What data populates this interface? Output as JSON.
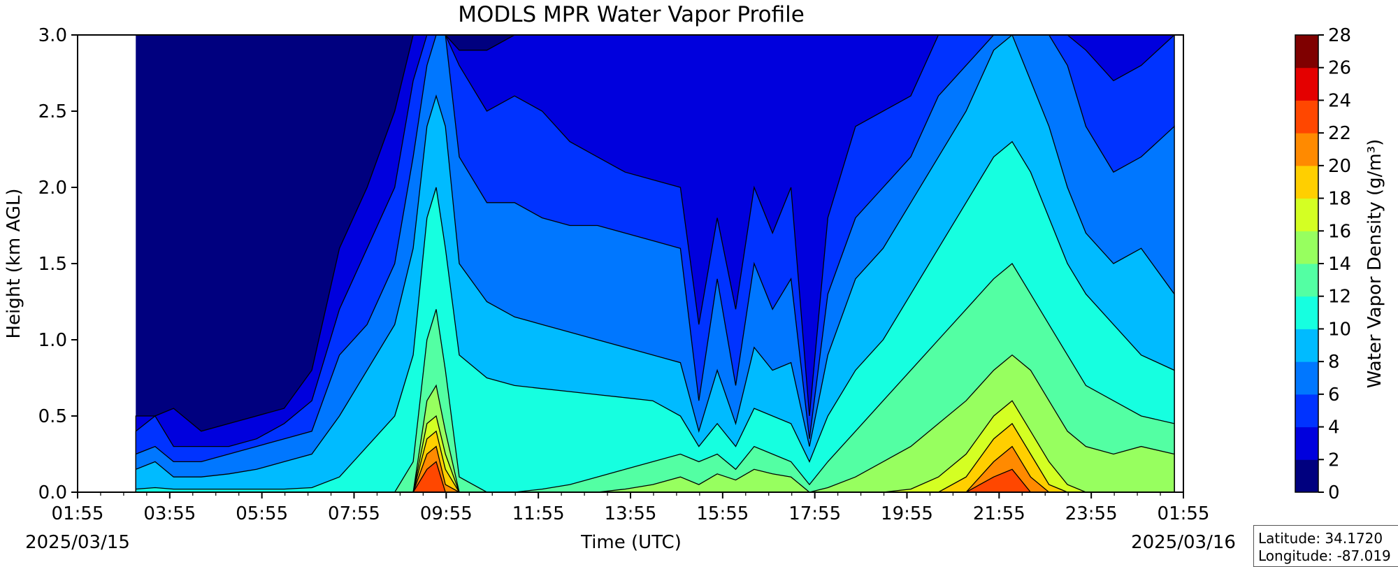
{
  "chart_data": {
    "type": "heatmap",
    "subtype": "filled-contour",
    "title": "MODLS MPR Water Vapor Profile",
    "xlabel": "Time (UTC)",
    "ylabel": "Height (km AGL)",
    "x_ticks": [
      "01:55",
      "03:55",
      "05:55",
      "07:55",
      "09:55",
      "11:55",
      "13:55",
      "15:55",
      "17:55",
      "19:55",
      "21:55",
      "23:55",
      "01:55"
    ],
    "x_tick_hours": [
      1.917,
      3.917,
      5.917,
      7.917,
      9.917,
      11.917,
      13.917,
      15.917,
      17.917,
      19.917,
      21.917,
      23.917,
      25.917
    ],
    "xlim_hours": [
      1.917,
      25.917
    ],
    "data_x_range_hours": [
      3.18,
      25.72
    ],
    "date_start": "2025/03/15",
    "date_end": "2025/03/16",
    "ylim": [
      0.0,
      3.0
    ],
    "y_ticks": [
      "0.0",
      "0.5",
      "1.0",
      "1.5",
      "2.0",
      "2.5",
      "3.0"
    ],
    "y_tick_values": [
      0.0,
      0.5,
      1.0,
      1.5,
      2.0,
      2.5,
      3.0
    ],
    "colorbar": {
      "label": "Water Vapor Density (g/m³)",
      "levels": [
        0,
        2,
        4,
        6,
        8,
        10,
        12,
        14,
        16,
        18,
        20,
        22,
        24,
        26,
        28
      ],
      "tick_labels": [
        "0",
        "2",
        "4",
        "6",
        "8",
        "10",
        "12",
        "14",
        "16",
        "18",
        "20",
        "22",
        "24",
        "26",
        "28"
      ],
      "colors": [
        "#00007f",
        "#0000dd",
        "#0033ff",
        "#0077ff",
        "#00bbff",
        "#16ffe0",
        "#53ffa3",
        "#97ff5f",
        "#d4ff23",
        "#ffcf00",
        "#ff8a00",
        "#ff4700",
        "#e40000",
        "#7f0000"
      ]
    },
    "time_series_hours": [
      3.18,
      3.6,
      4.0,
      4.6,
      5.2,
      5.8,
      6.4,
      7.0,
      7.6,
      8.2,
      8.8,
      9.2,
      9.5,
      9.7,
      9.9,
      10.2,
      10.8,
      11.4,
      12.0,
      12.6,
      13.2,
      13.8,
      14.4,
      15.0,
      15.4,
      15.8,
      16.2,
      16.6,
      17.0,
      17.4,
      17.8,
      18.2,
      18.8,
      19.4,
      20.0,
      20.6,
      21.2,
      21.8,
      22.2,
      22.6,
      23.0,
      23.4,
      23.8,
      24.4,
      25.0,
      25.72
    ],
    "level_boundary_heights_km": {
      "2": [
        0.5,
        0.5,
        0.55,
        0.4,
        0.45,
        0.5,
        0.55,
        0.8,
        1.6,
        2.0,
        2.5,
        3.0,
        3.0,
        3.0,
        3.0,
        2.9,
        2.9,
        3.0,
        3.0,
        3.0,
        3.0,
        3.0,
        3.0,
        3.0,
        3.0,
        3.0,
        3.0,
        3.0,
        3.0,
        3.0,
        3.0,
        3.0,
        3.0,
        3.0,
        3.0,
        3.0,
        3.0,
        3.0,
        3.0,
        3.0,
        3.0,
        3.0,
        3.0,
        3.0,
        3.0,
        3.0
      ],
      "4": [
        0.4,
        0.5,
        0.3,
        0.3,
        0.3,
        0.35,
        0.45,
        0.6,
        1.2,
        1.6,
        2.0,
        2.7,
        3.0,
        3.0,
        3.0,
        2.8,
        2.5,
        2.6,
        2.5,
        2.3,
        2.2,
        2.1,
        2.05,
        2.0,
        1.1,
        1.8,
        1.2,
        2.0,
        1.7,
        2.0,
        0.5,
        1.8,
        2.4,
        2.5,
        2.6,
        3.0,
        3.0,
        3.0,
        3.0,
        3.0,
        3.0,
        3.0,
        2.9,
        2.7,
        2.8,
        3.0
      ],
      "6": [
        0.25,
        0.3,
        0.2,
        0.2,
        0.25,
        0.3,
        0.35,
        0.4,
        0.9,
        1.1,
        1.5,
        2.2,
        2.8,
        3.0,
        3.0,
        2.2,
        1.9,
        1.9,
        1.8,
        1.75,
        1.75,
        1.7,
        1.65,
        1.6,
        0.6,
        1.4,
        0.7,
        1.5,
        1.2,
        1.4,
        0.35,
        1.3,
        1.8,
        2.0,
        2.2,
        2.6,
        2.8,
        3.0,
        3.0,
        3.0,
        3.0,
        2.8,
        2.4,
        2.1,
        2.2,
        2.4
      ],
      "8": [
        0.15,
        0.2,
        0.1,
        0.1,
        0.12,
        0.15,
        0.2,
        0.25,
        0.5,
        0.8,
        1.1,
        1.6,
        2.4,
        2.6,
        2.4,
        1.5,
        1.25,
        1.15,
        1.1,
        1.05,
        1.0,
        0.95,
        0.9,
        0.85,
        0.4,
        0.8,
        0.45,
        0.95,
        0.8,
        0.85,
        0.3,
        0.9,
        1.4,
        1.6,
        1.9,
        2.2,
        2.5,
        2.9,
        3.0,
        2.7,
        2.4,
        2.0,
        1.7,
        1.5,
        1.6,
        1.3
      ],
      "10": [
        0.02,
        0.03,
        0.02,
        0.02,
        0.02,
        0.02,
        0.02,
        0.03,
        0.1,
        0.3,
        0.5,
        0.9,
        1.8,
        2.0,
        1.6,
        0.9,
        0.75,
        0.7,
        0.68,
        0.66,
        0.64,
        0.62,
        0.6,
        0.5,
        0.3,
        0.45,
        0.3,
        0.55,
        0.5,
        0.45,
        0.2,
        0.5,
        0.8,
        1.0,
        1.3,
        1.6,
        1.9,
        2.2,
        2.3,
        2.1,
        1.8,
        1.5,
        1.3,
        1.1,
        0.9,
        0.8
      ],
      "12": [
        0.0,
        0.0,
        0.0,
        0.0,
        0.0,
        0.0,
        0.0,
        0.0,
        0.0,
        0.0,
        0.0,
        0.2,
        1.0,
        1.2,
        0.8,
        0.1,
        0.0,
        0.0,
        0.02,
        0.05,
        0.1,
        0.15,
        0.2,
        0.25,
        0.2,
        0.25,
        0.15,
        0.3,
        0.25,
        0.2,
        0.05,
        0.2,
        0.4,
        0.6,
        0.8,
        1.0,
        1.2,
        1.4,
        1.5,
        1.3,
        1.1,
        0.9,
        0.7,
        0.6,
        0.5,
        0.45
      ],
      "14": [
        0.0,
        0.0,
        0.0,
        0.0,
        0.0,
        0.0,
        0.0,
        0.0,
        0.0,
        0.0,
        0.0,
        0.0,
        0.6,
        0.7,
        0.4,
        0.0,
        0.0,
        0.0,
        0.0,
        0.0,
        0.0,
        0.02,
        0.05,
        0.1,
        0.05,
        0.12,
        0.08,
        0.15,
        0.12,
        0.1,
        0.0,
        0.03,
        0.1,
        0.2,
        0.3,
        0.45,
        0.6,
        0.8,
        0.9,
        0.8,
        0.6,
        0.4,
        0.3,
        0.25,
        0.3,
        0.25
      ],
      "16": [
        0.0,
        0.0,
        0.0,
        0.0,
        0.0,
        0.0,
        0.0,
        0.0,
        0.0,
        0.0,
        0.0,
        0.0,
        0.45,
        0.5,
        0.25,
        0.0,
        0.0,
        0.0,
        0.0,
        0.0,
        0.0,
        0.0,
        0.0,
        0.0,
        0.0,
        0.0,
        0.0,
        0.0,
        0.0,
        0.0,
        0.0,
        0.0,
        0.0,
        0.0,
        0.02,
        0.1,
        0.25,
        0.5,
        0.6,
        0.4,
        0.2,
        0.05,
        0.0,
        0.0,
        0.0,
        0.0
      ],
      "18": [
        0.0,
        0.0,
        0.0,
        0.0,
        0.0,
        0.0,
        0.0,
        0.0,
        0.0,
        0.0,
        0.0,
        0.0,
        0.35,
        0.4,
        0.15,
        0.0,
        0.0,
        0.0,
        0.0,
        0.0,
        0.0,
        0.0,
        0.0,
        0.0,
        0.0,
        0.0,
        0.0,
        0.0,
        0.0,
        0.0,
        0.0,
        0.0,
        0.0,
        0.0,
        0.0,
        0.0,
        0.1,
        0.35,
        0.45,
        0.25,
        0.05,
        0.0,
        0.0,
        0.0,
        0.0,
        0.0
      ],
      "20": [
        0.0,
        0.0,
        0.0,
        0.0,
        0.0,
        0.0,
        0.0,
        0.0,
        0.0,
        0.0,
        0.0,
        0.0,
        0.25,
        0.3,
        0.05,
        0.0,
        0.0,
        0.0,
        0.0,
        0.0,
        0.0,
        0.0,
        0.0,
        0.0,
        0.0,
        0.0,
        0.0,
        0.0,
        0.0,
        0.0,
        0.0,
        0.0,
        0.0,
        0.0,
        0.0,
        0.0,
        0.0,
        0.2,
        0.3,
        0.1,
        0.0,
        0.0,
        0.0,
        0.0,
        0.0,
        0.0
      ],
      "22": [
        0.0,
        0.0,
        0.0,
        0.0,
        0.0,
        0.0,
        0.0,
        0.0,
        0.0,
        0.0,
        0.0,
        0.0,
        0.15,
        0.2,
        0.0,
        0.0,
        0.0,
        0.0,
        0.0,
        0.0,
        0.0,
        0.0,
        0.0,
        0.0,
        0.0,
        0.0,
        0.0,
        0.0,
        0.0,
        0.0,
        0.0,
        0.0,
        0.0,
        0.0,
        0.0,
        0.0,
        0.0,
        0.1,
        0.15,
        0.0,
        0.0,
        0.0,
        0.0,
        0.0,
        0.0,
        0.0
      ]
    },
    "info_box": {
      "latitude": "Latitude: 34.1720",
      "longitude": "Longitude: -87.019"
    }
  }
}
